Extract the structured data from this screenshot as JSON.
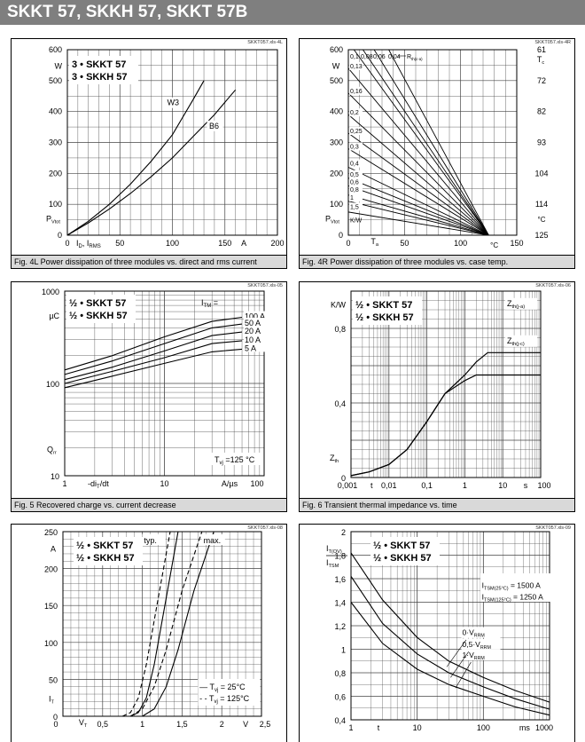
{
  "header": {
    "title": "SKKT 57, SKKH 57, SKKT 57B"
  },
  "figures": [
    {
      "file": "SKKT057.xls-4L",
      "caption": "Fig. 4L Power dissipation of three modules vs. direct and rms current",
      "legend": [
        "3 • SKKT 57",
        "3 • SKKH 57"
      ],
      "y_unit": "W",
      "y_label": "P",
      "y_label_sub": "Vtot",
      "x_label": "I",
      "x_label_sub1": "D",
      "x_label_mid": ", I",
      "x_label_sub2": "RMS",
      "x_unit": "A",
      "x_ticks": [
        "0",
        "50",
        "100",
        "150",
        "200"
      ],
      "y_ticks": [
        "0",
        "100",
        "200",
        "300",
        "400",
        "500",
        "600"
      ],
      "curve_labels": [
        "W3",
        "B6"
      ]
    },
    {
      "file": "SKKT057.xls-4R",
      "caption": "Fig. 4R Power dissipation of three modules vs. case temp.",
      "y_unit": "W",
      "y_label": "P",
      "y_label_sub": "Vtot",
      "x_label": "T",
      "x_label_sub": "a",
      "x_unit": "°C",
      "right_label": "T",
      "right_label_sub": "c",
      "right_unit": "°C",
      "kw": "K/W",
      "rth_label": "R",
      "rth_label_sub": "th(c-a)",
      "x_ticks": [
        "0",
        "50",
        "100",
        "150"
      ],
      "y_ticks": [
        "0",
        "100",
        "200",
        "300",
        "400",
        "500",
        "600"
      ],
      "right_ticks": [
        "125",
        "114",
        "104",
        "93",
        "82",
        "72",
        "61"
      ],
      "rth_top": [
        "0,1",
        "0,08",
        "0,06",
        "0,04"
      ],
      "rth_side": [
        "0,13",
        "0,16",
        "0,2",
        "0,25",
        "0,3",
        "0,4",
        "0,5",
        "0,6",
        "0,8",
        "1",
        "1,5"
      ]
    },
    {
      "file": "SKKT057.xls-05",
      "caption": "Fig. 5 Recovered charge vs. current decrease",
      "legend": [
        "½ • SKKT 57",
        "½ • SKKH 57"
      ],
      "y_unit": "µC",
      "y_label": "Q",
      "y_label_sub": "rr",
      "x_label": "-di",
      "x_label_sub": "T",
      "x_label_end": "/dt",
      "x_unit": "A/µs",
      "tvj": "T",
      "tvj_sub": "vj",
      "tvj_val": " =125 °C",
      "itm": "I",
      "itm_sub": "TM",
      "itm_eq": " = ",
      "y_ticks": [
        "10",
        "100",
        "1000"
      ],
      "x_ticks": [
        "1",
        "10",
        "100"
      ],
      "currents": [
        "100 A",
        "50 A",
        "20 A",
        "10 A",
        "5 A"
      ]
    },
    {
      "file": "SKKT057.xls-06",
      "caption": "Fig. 6 Transient thermal impedance vs. time",
      "legend": [
        "½ • SKKT 57",
        "½ • SKKH 57"
      ],
      "y_unit": "K/W",
      "y_label": "Z",
      "y_label_sub": "th",
      "x_label": "t",
      "x_unit": "s",
      "y_ticks": [
        "0",
        "0,4",
        "0,8"
      ],
      "x_ticks": [
        "0,001",
        "0,01",
        "0,1",
        "1",
        "10",
        "100"
      ],
      "curve_labels": [
        {
          "main": "Z",
          "sub": "th(j-a)"
        },
        {
          "main": "Z",
          "sub": "th(j-c)"
        }
      ]
    },
    {
      "file": "SKKT057.xls-08",
      "caption": "",
      "legend": [
        "½ • SKKT 57",
        "½ • SKKH 57"
      ],
      "y_unit": "A",
      "y_label": "I",
      "y_label_sub": "T",
      "x_label": "V",
      "x_label_sub": "T",
      "x_unit": "V",
      "typ": "typ.",
      "max": "max.",
      "y_ticks": [
        "0",
        "50",
        "100",
        "150",
        "200",
        "250"
      ],
      "x_ticks": [
        "0",
        "0,5",
        "1",
        "1,5",
        "2",
        "2,5"
      ],
      "key": [
        {
          "dash": "—",
          "t": "T",
          "sub": "vj",
          "val": " = 25°C"
        },
        {
          "dash": "- -",
          "t": "T",
          "sub": "vj",
          "val": " = 125°C"
        }
      ]
    },
    {
      "file": "SKKT057.xls-09",
      "caption": "",
      "legend": [
        "½ • SKKT 57",
        "½ • SKKH 57"
      ],
      "y_label_num": "I",
      "y_label_num_sub": "T(OV)",
      "y_label_den": "I",
      "y_label_den_sub": "TSM",
      "x_label": "t",
      "x_unit": "ms",
      "y_ticks": [
        "0,4",
        "0,6",
        "0,8",
        "1",
        "1,2",
        "1,4",
        "1,6",
        "1,8",
        "2"
      ],
      "x_ticks": [
        "1",
        "10",
        "100",
        "1000"
      ],
      "itsm": [
        {
          "main": "I",
          "sub": "TSM(25°C)",
          "val": " = 1500 A"
        },
        {
          "main": "I",
          "sub": "TSM(125°C)",
          "val": " = 1250 A"
        }
      ],
      "vrrm": [
        {
          "pre": "0·V",
          "sub": "RRM"
        },
        {
          "pre": "0,5·V",
          "sub": "RRM"
        },
        {
          "pre": "1·V",
          "sub": "RRM"
        }
      ]
    }
  ],
  "chart_data": [
    {
      "type": "line",
      "xlim": [
        0,
        200
      ],
      "ylim": [
        0,
        600
      ],
      "series": [
        {
          "name": "W3",
          "x": [
            0,
            20,
            40,
            60,
            80,
            100,
            120,
            130
          ],
          "y": [
            0,
            45,
            100,
            165,
            240,
            325,
            440,
            500
          ]
        },
        {
          "name": "B6",
          "x": [
            0,
            20,
            40,
            60,
            80,
            100,
            120,
            140,
            160
          ],
          "y": [
            0,
            40,
            85,
            135,
            190,
            250,
            320,
            390,
            470
          ]
        }
      ]
    },
    {
      "type": "line",
      "xlim": [
        0,
        150
      ],
      "ylim": [
        0,
        600
      ],
      "lines_to_x": 125,
      "starts": [
        {
          "x": 5,
          "y": 600
        },
        {
          "x": 13,
          "y": 600
        },
        {
          "x": 23,
          "y": 600
        },
        {
          "x": 36,
          "y": 600
        },
        {
          "x": 0,
          "y": 540
        },
        {
          "x": 0,
          "y": 460
        },
        {
          "x": 0,
          "y": 390
        },
        {
          "x": 0,
          "y": 330
        },
        {
          "x": 0,
          "y": 280
        },
        {
          "x": 0,
          "y": 220
        },
        {
          "x": 0,
          "y": 185
        },
        {
          "x": 0,
          "y": 160
        },
        {
          "x": 0,
          "y": 130
        },
        {
          "x": 0,
          "y": 110
        },
        {
          "x": 0,
          "y": 75
        }
      ]
    },
    {
      "type": "line",
      "xlim": [
        1,
        100
      ],
      "ylim": [
        10,
        1000
      ],
      "log": true,
      "series": [
        {
          "name": "100 A",
          "x": [
            1,
            3,
            10,
            30,
            60
          ],
          "y": [
            140,
            200,
            320,
            470,
            520
          ]
        },
        {
          "name": "50 A",
          "x": [
            1,
            3,
            10,
            30,
            60
          ],
          "y": [
            125,
            175,
            270,
            400,
            440
          ]
        },
        {
          "name": "20 A",
          "x": [
            1,
            3,
            10,
            30,
            60
          ],
          "y": [
            110,
            150,
            225,
            330,
            360
          ]
        },
        {
          "name": "10 A",
          "x": [
            1,
            3,
            10,
            30,
            60
          ],
          "y": [
            100,
            135,
            190,
            270,
            290
          ]
        },
        {
          "name": "5 A",
          "x": [
            1,
            3,
            10,
            30,
            60
          ],
          "y": [
            90,
            120,
            165,
            220,
            235
          ]
        }
      ]
    },
    {
      "type": "line",
      "xlim": [
        0.001,
        100
      ],
      "ylim": [
        0,
        1.0
      ],
      "xlog": true,
      "series": [
        {
          "name": "Zth(j-a)",
          "x": [
            0.001,
            0.003,
            0.01,
            0.03,
            0.1,
            0.3,
            1,
            2,
            4,
            10,
            100
          ],
          "y": [
            0.01,
            0.03,
            0.07,
            0.15,
            0.3,
            0.45,
            0.55,
            0.62,
            0.67,
            0.67,
            0.67
          ]
        },
        {
          "name": "Zth(j-c)",
          "x": [
            0.001,
            0.003,
            0.01,
            0.03,
            0.1,
            0.3,
            1,
            2,
            4,
            10,
            100
          ],
          "y": [
            0.01,
            0.03,
            0.07,
            0.15,
            0.3,
            0.45,
            0.52,
            0.55,
            0.55,
            0.55,
            0.55
          ]
        }
      ]
    },
    {
      "type": "line",
      "xlim": [
        0,
        2.5
      ],
      "ylim": [
        0,
        250
      ],
      "series": [
        {
          "name": "typ 125°C",
          "dashed": true,
          "x": [
            0.75,
            0.85,
            0.95,
            1.05,
            1.2,
            1.35
          ],
          "y": [
            0,
            5,
            25,
            70,
            160,
            250
          ]
        },
        {
          "name": "typ 25°C",
          "dashed": false,
          "x": [
            0.85,
            0.95,
            1.05,
            1.15,
            1.3,
            1.45
          ],
          "y": [
            0,
            5,
            25,
            70,
            160,
            250
          ]
        },
        {
          "name": "max 125°C",
          "dashed": true,
          "x": [
            0.85,
            1.0,
            1.15,
            1.3,
            1.5,
            1.75
          ],
          "y": [
            0,
            10,
            40,
            90,
            170,
            250
          ]
        },
        {
          "name": "max 25°C",
          "dashed": false,
          "x": [
            1.0,
            1.15,
            1.3,
            1.45,
            1.65,
            1.9
          ],
          "y": [
            0,
            10,
            40,
            90,
            170,
            250
          ]
        }
      ]
    },
    {
      "type": "line",
      "xlim": [
        1,
        1000
      ],
      "ylim": [
        0.4,
        2.0
      ],
      "xlog": true,
      "series": [
        {
          "name": "0·VRRM",
          "x": [
            1,
            3,
            10,
            30,
            100,
            300,
            1000
          ],
          "y": [
            1.82,
            1.42,
            1.1,
            0.9,
            0.76,
            0.65,
            0.55
          ]
        },
        {
          "name": "0,5·VRRM",
          "x": [
            1,
            3,
            10,
            30,
            100,
            300,
            1000
          ],
          "y": [
            1.62,
            1.22,
            0.96,
            0.8,
            0.68,
            0.58,
            0.49
          ]
        },
        {
          "name": "1·VRRM",
          "x": [
            1,
            3,
            10,
            30,
            100,
            300,
            1000
          ],
          "y": [
            1.4,
            1.05,
            0.83,
            0.7,
            0.6,
            0.51,
            0.44
          ]
        }
      ]
    }
  ]
}
